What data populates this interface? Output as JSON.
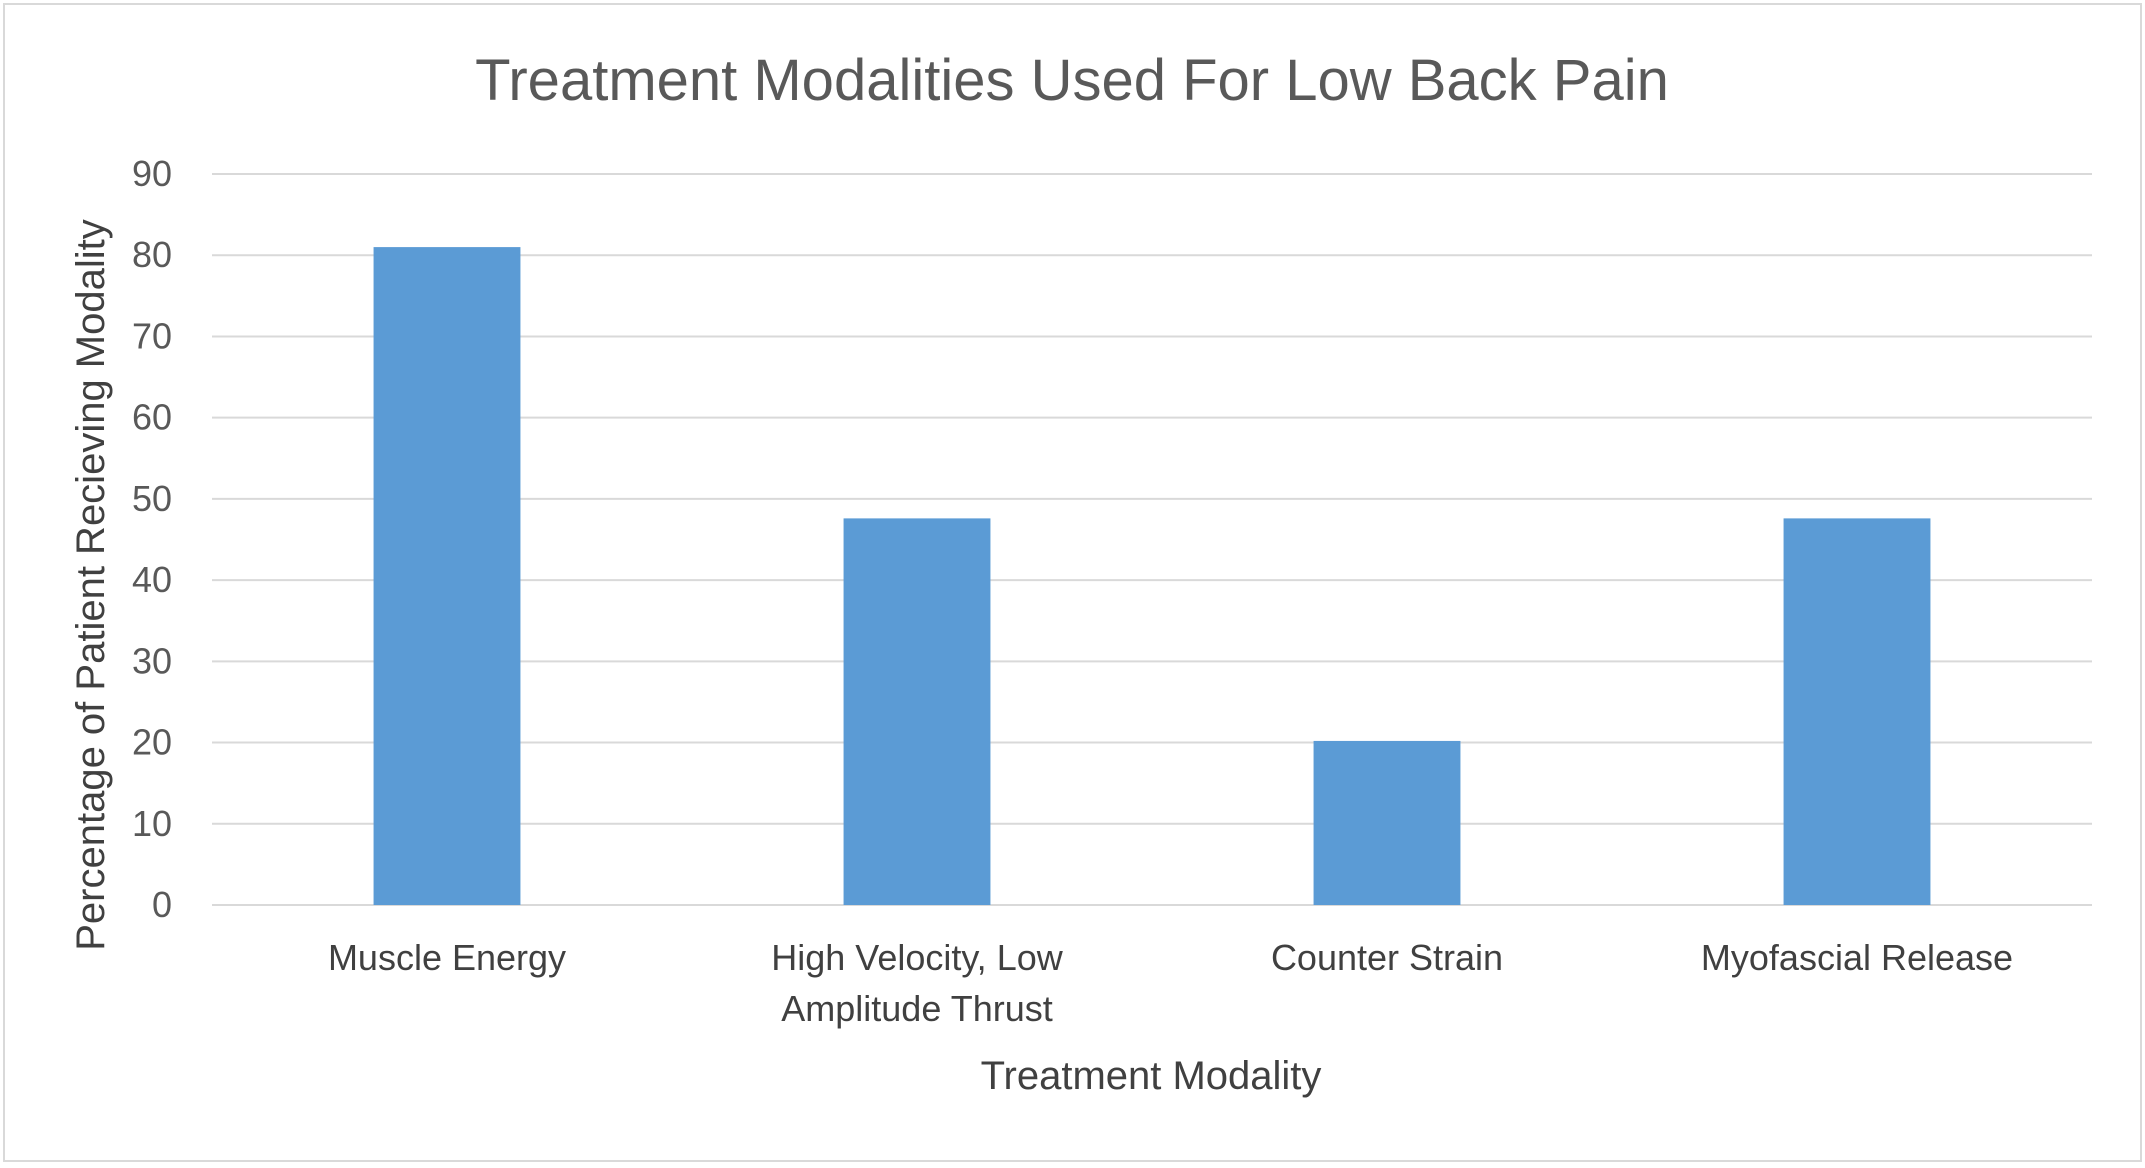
{
  "chart_data": {
    "type": "bar",
    "title": "Treatment Modalities Used For Low Back Pain",
    "xlabel": "Treatment Modality",
    "ylabel": "Percentage of Patient Recieving Modality",
    "categories": [
      [
        "Muscle Energy"
      ],
      [
        "High Velocity, Low",
        "Amplitude Thrust"
      ],
      [
        "Counter Strain"
      ],
      [
        "Myofascial Release"
      ]
    ],
    "values": [
      81,
      47.6,
      20.2,
      47.6
    ],
    "ylim": [
      0,
      90
    ],
    "yticks": [
      0,
      10,
      20,
      30,
      40,
      50,
      60,
      70,
      80,
      90
    ],
    "grid": true,
    "legend": "none",
    "colors": {
      "bar": "#5b9bd5",
      "grid": "#d9d9d9",
      "text": "#595959"
    }
  }
}
